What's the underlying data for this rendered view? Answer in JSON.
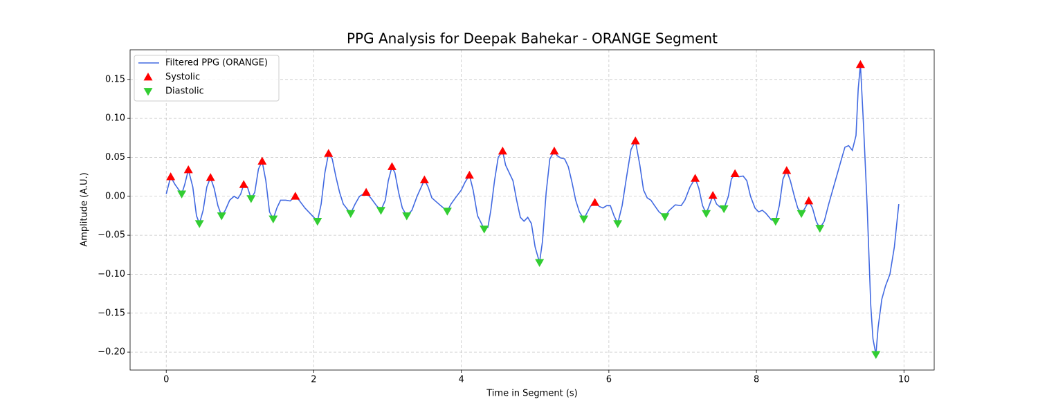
{
  "chart_data": {
    "type": "line",
    "title": "PPG Analysis for Deepak Bahekar - ORANGE Segment",
    "x_label": "Time in Segment (s)",
    "y_label": "Amplitude (A.U.)",
    "xlim": [
      -0.49,
      10.41
    ],
    "ylim": [
      -0.223,
      0.188
    ],
    "xticks": [
      0,
      2,
      4,
      6,
      8,
      10
    ],
    "yticks": [
      {
        "value": -0.2,
        "label": "−0.20"
      },
      {
        "value": -0.15,
        "label": "−0.15"
      },
      {
        "value": -0.1,
        "label": "−0.10"
      },
      {
        "value": -0.05,
        "label": "−0.05"
      },
      {
        "value": 0,
        "label": "0.00"
      },
      {
        "value": 0.05,
        "label": "0.05"
      },
      {
        "value": 0.1,
        "label": "0.10"
      },
      {
        "value": 0.15,
        "label": "0.15"
      }
    ],
    "grid": true,
    "legend": "upper left",
    "series": [
      {
        "name": "Filtered PPG (ORANGE)",
        "color": "#4169e1",
        "style": "line",
        "x": [
          0.0,
          0.06,
          0.12,
          0.21,
          0.25,
          0.3,
          0.36,
          0.41,
          0.45,
          0.5,
          0.55,
          0.6,
          0.65,
          0.7,
          0.75,
          0.8,
          0.86,
          0.92,
          0.97,
          1.01,
          1.05,
          1.1,
          1.15,
          1.2,
          1.25,
          1.3,
          1.35,
          1.4,
          1.45,
          1.5,
          1.55,
          1.62,
          1.68,
          1.75,
          1.8,
          1.88,
          1.95,
          2.05,
          2.1,
          2.15,
          2.2,
          2.25,
          2.3,
          2.35,
          2.4,
          2.5,
          2.56,
          2.62,
          2.71,
          2.78,
          2.85,
          2.91,
          2.97,
          3.01,
          3.06,
          3.1,
          3.15,
          3.2,
          3.26,
          3.33,
          3.4,
          3.5,
          3.55,
          3.6,
          3.66,
          3.72,
          3.81,
          3.86,
          3.92,
          4.0,
          4.05,
          4.11,
          4.16,
          4.22,
          4.31,
          4.36,
          4.4,
          4.45,
          4.5,
          4.56,
          4.6,
          4.65,
          4.7,
          4.75,
          4.8,
          4.85,
          4.9,
          4.95,
          5.0,
          5.06,
          5.1,
          5.15,
          5.2,
          5.26,
          5.3,
          5.35,
          5.4,
          5.45,
          5.5,
          5.55,
          5.6,
          5.66,
          5.7,
          5.75,
          5.81,
          5.87,
          5.92,
          5.97,
          6.02,
          6.07,
          6.12,
          6.18,
          6.24,
          6.3,
          6.36,
          6.42,
          6.47,
          6.52,
          6.57,
          6.62,
          6.68,
          6.76,
          6.82,
          6.9,
          6.98,
          7.03,
          7.1,
          7.17,
          7.22,
          7.27,
          7.32,
          7.36,
          7.41,
          7.46,
          7.52,
          7.56,
          7.62,
          7.66,
          7.71,
          7.76,
          7.82,
          7.87,
          7.92,
          7.98,
          8.03,
          8.08,
          8.13,
          8.2,
          8.26,
          8.31,
          8.36,
          8.41,
          8.46,
          8.52,
          8.56,
          8.61,
          8.66,
          8.71,
          8.76,
          8.81,
          8.86,
          8.92,
          8.98,
          9.04,
          9.1,
          9.16,
          9.2,
          9.25,
          9.3,
          9.35,
          9.38,
          9.41,
          9.45,
          9.5,
          9.55,
          9.58,
          9.62,
          9.65,
          9.7,
          9.75,
          9.81,
          9.87,
          9.93
        ],
        "values": [
          0.003,
          0.025,
          0.015,
          0.003,
          0.015,
          0.034,
          0.012,
          -0.025,
          -0.035,
          -0.018,
          0.012,
          0.024,
          0.01,
          -0.012,
          -0.025,
          -0.018,
          -0.005,
          0.0,
          -0.003,
          0.003,
          0.015,
          0.012,
          -0.003,
          0.005,
          0.035,
          0.045,
          0.02,
          -0.02,
          -0.029,
          -0.015,
          -0.005,
          -0.005,
          -0.006,
          0.0,
          -0.005,
          -0.015,
          -0.022,
          -0.032,
          -0.01,
          0.03,
          0.055,
          0.048,
          0.025,
          0.005,
          -0.01,
          -0.022,
          -0.01,
          0.0,
          0.005,
          -0.003,
          -0.012,
          -0.018,
          -0.005,
          0.02,
          0.038,
          0.03,
          0.005,
          -0.015,
          -0.025,
          -0.018,
          0.0,
          0.021,
          0.012,
          -0.002,
          -0.007,
          -0.012,
          -0.019,
          -0.01,
          -0.002,
          0.008,
          0.018,
          0.027,
          0.008,
          -0.025,
          -0.042,
          -0.04,
          -0.018,
          0.02,
          0.05,
          0.058,
          0.04,
          0.03,
          0.02,
          -0.005,
          -0.027,
          -0.032,
          -0.027,
          -0.035,
          -0.065,
          -0.085,
          -0.058,
          0.005,
          0.048,
          0.058,
          0.052,
          0.049,
          0.048,
          0.038,
          0.018,
          -0.005,
          -0.02,
          -0.029,
          -0.022,
          -0.013,
          -0.008,
          -0.013,
          -0.015,
          -0.012,
          -0.012,
          -0.025,
          -0.035,
          -0.012,
          0.025,
          0.06,
          0.071,
          0.04,
          0.008,
          -0.002,
          -0.005,
          -0.012,
          -0.02,
          -0.026,
          -0.018,
          -0.011,
          -0.012,
          -0.005,
          0.012,
          0.023,
          0.01,
          -0.012,
          -0.022,
          -0.012,
          0.001,
          -0.01,
          -0.015,
          -0.016,
          0.0,
          0.022,
          0.029,
          0.025,
          0.026,
          0.02,
          0.0,
          -0.015,
          -0.02,
          -0.018,
          -0.022,
          -0.03,
          -0.032,
          -0.012,
          0.022,
          0.033,
          0.02,
          -0.002,
          -0.015,
          -0.022,
          -0.015,
          -0.006,
          -0.015,
          -0.032,
          -0.041,
          -0.032,
          -0.01,
          0.01,
          0.03,
          0.05,
          0.063,
          0.065,
          0.059,
          0.078,
          0.138,
          0.169,
          0.095,
          -0.01,
          -0.14,
          -0.183,
          -0.203,
          -0.168,
          -0.132,
          -0.115,
          -0.1,
          -0.065,
          -0.01
        ]
      },
      {
        "name": "Systolic",
        "color": "#ff0000",
        "style": "marker",
        "marker": "up",
        "x": [
          0.06,
          0.3,
          0.6,
          1.05,
          1.3,
          1.75,
          2.2,
          2.71,
          3.06,
          3.5,
          4.11,
          4.56,
          5.26,
          5.81,
          6.36,
          7.17,
          7.41,
          7.71,
          8.41,
          8.71,
          9.41
        ],
        "values": [
          0.025,
          0.034,
          0.024,
          0.015,
          0.045,
          0.0,
          0.055,
          0.005,
          0.038,
          0.021,
          0.027,
          0.058,
          0.058,
          -0.008,
          0.071,
          0.023,
          0.001,
          0.029,
          0.033,
          -0.006,
          0.169
        ]
      },
      {
        "name": "Diastolic",
        "color": "#32cd32",
        "style": "marker",
        "marker": "down",
        "x": [
          0.21,
          0.45,
          0.75,
          1.15,
          1.45,
          2.05,
          2.5,
          2.91,
          3.26,
          3.81,
          4.31,
          5.06,
          5.66,
          6.12,
          6.76,
          7.32,
          7.56,
          8.26,
          8.61,
          8.86,
          9.62
        ],
        "values": [
          0.003,
          -0.035,
          -0.025,
          -0.003,
          -0.029,
          -0.032,
          -0.022,
          -0.018,
          -0.025,
          -0.019,
          -0.042,
          -0.085,
          -0.029,
          -0.035,
          -0.026,
          -0.022,
          -0.016,
          -0.032,
          -0.022,
          -0.041,
          -0.203
        ]
      }
    ]
  }
}
